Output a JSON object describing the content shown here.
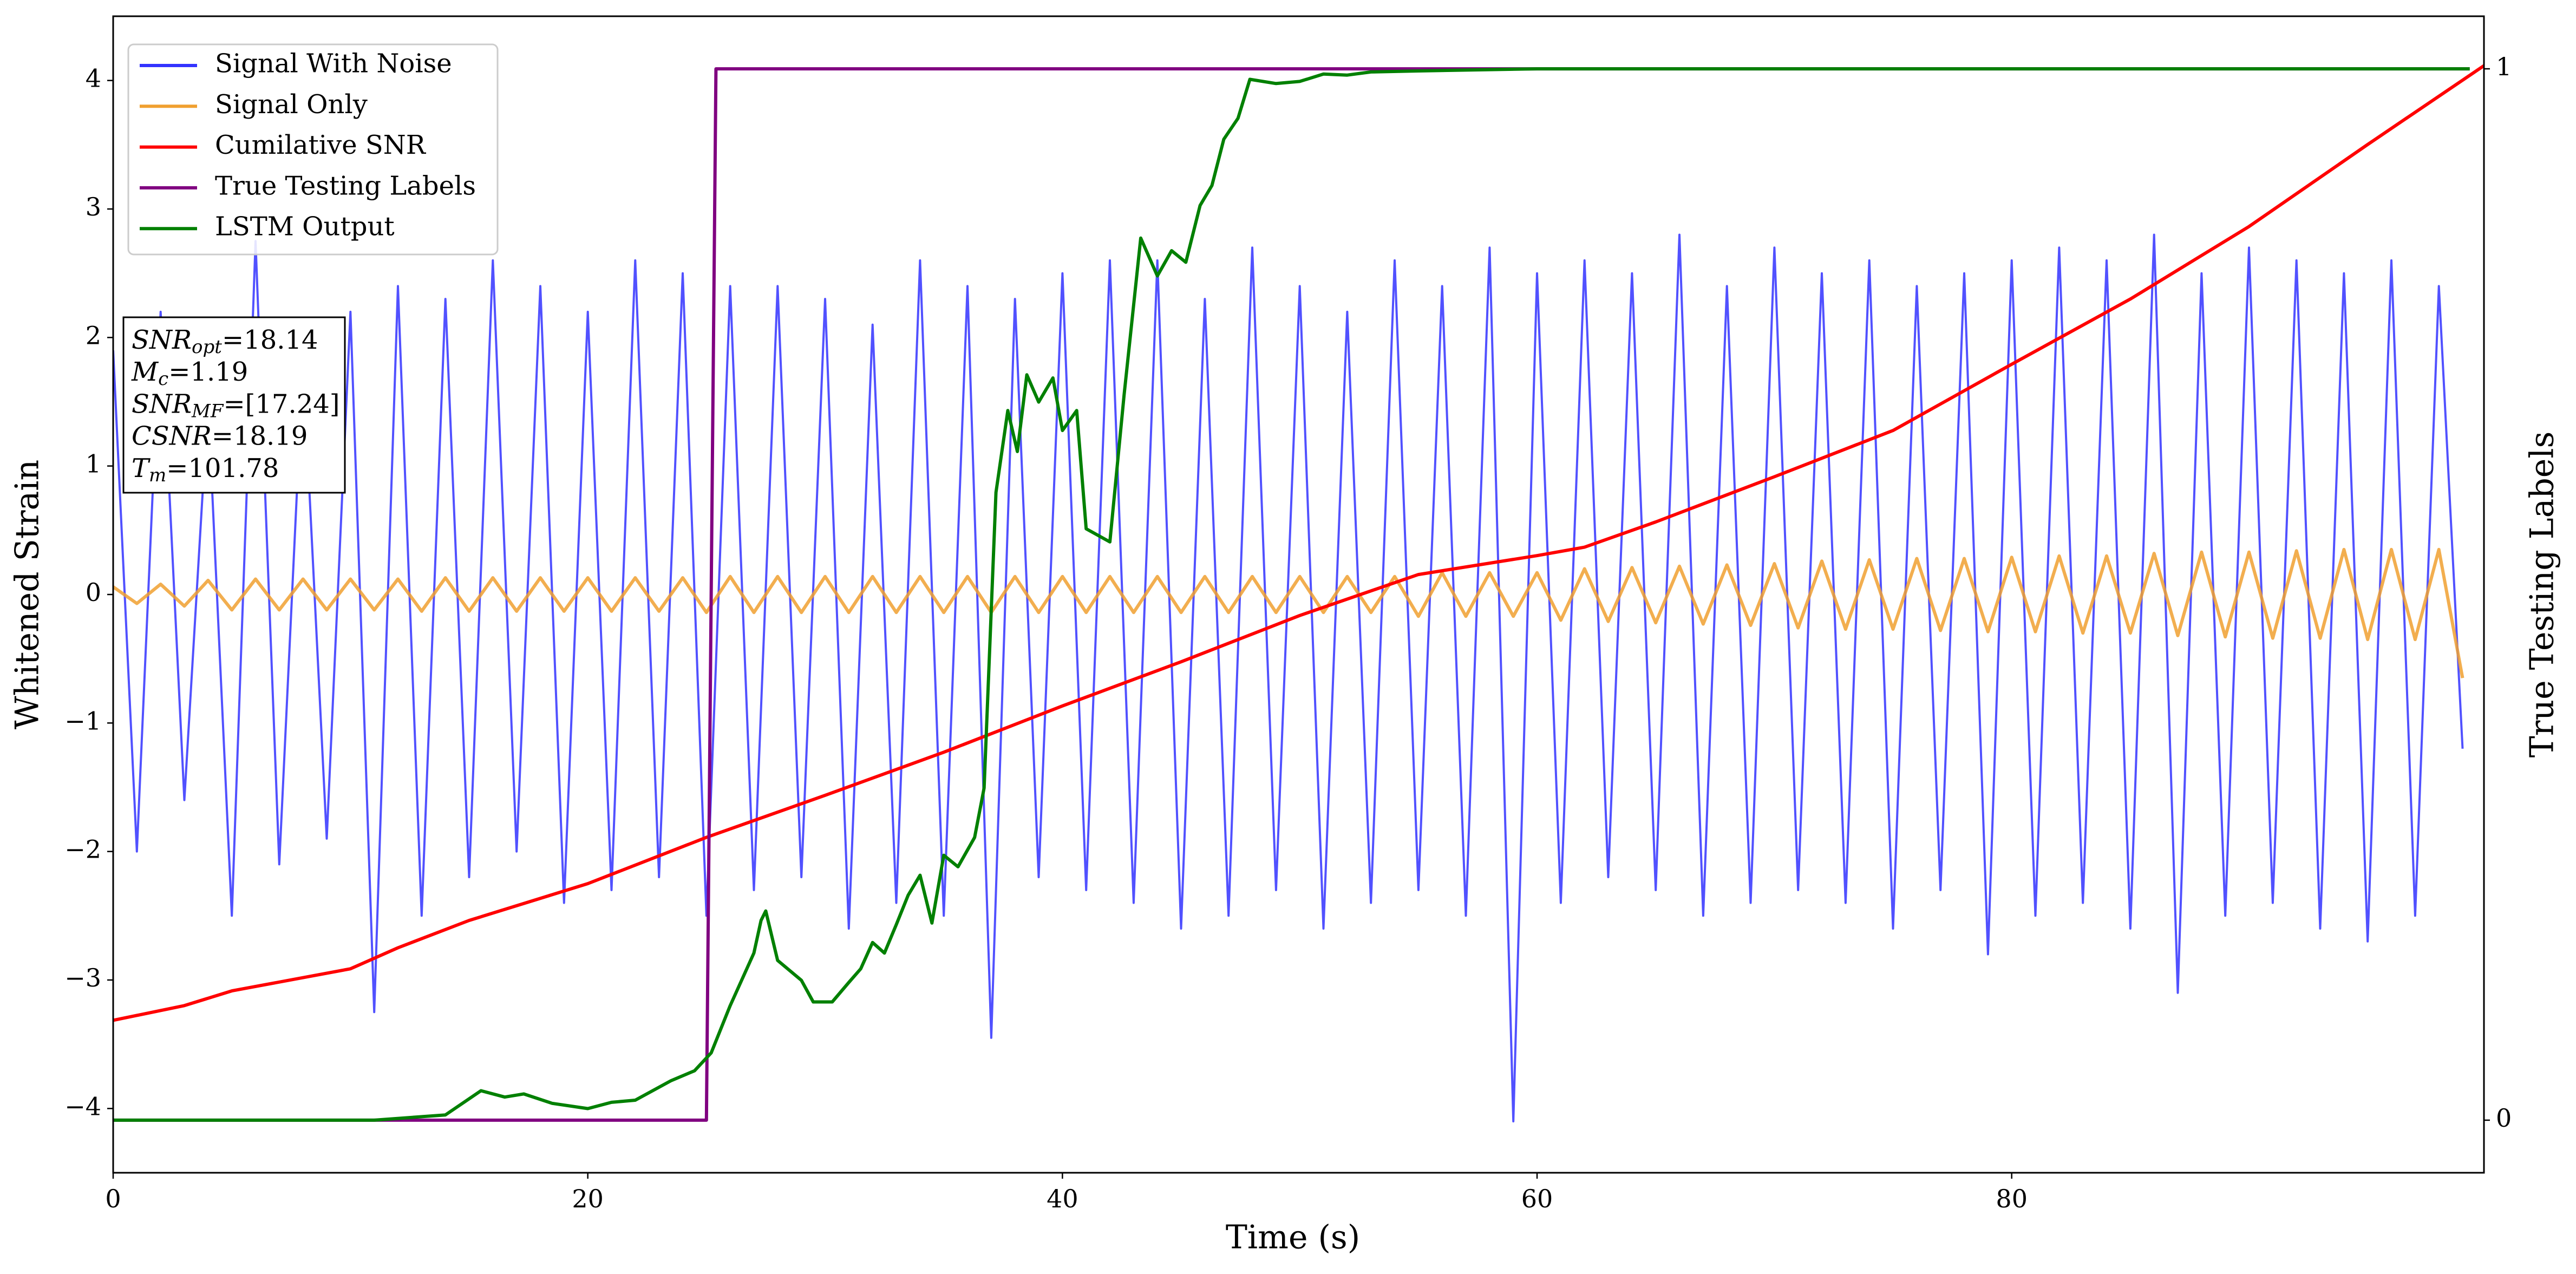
{
  "chart_data": {
    "type": "line",
    "xlabel": "Time (s)",
    "ylabel": "Whitened Strain",
    "y2label": "True Testing Labels",
    "xlim": [
      0,
      99.9
    ],
    "ylim": [
      -4.5,
      4.5
    ],
    "y2lim": [
      -0.05,
      1.05
    ],
    "xticks": [
      0,
      20,
      40,
      60,
      80
    ],
    "yticks": [
      {
        "value": -4,
        "label": "−4"
      },
      {
        "value": -3,
        "label": "−3"
      },
      {
        "value": -2,
        "label": "−2"
      },
      {
        "value": -1,
        "label": "−1"
      },
      0,
      1,
      2,
      3,
      4
    ],
    "y2ticks": [
      0,
      1
    ],
    "legend": "upper left",
    "series": [
      {
        "name": "Signal With Noise",
        "color": "#3333ff",
        "x": [
          0,
          1,
          2,
          3,
          4,
          5,
          6,
          7,
          8,
          9,
          10,
          11,
          12,
          13,
          14,
          15,
          16,
          17,
          18,
          19,
          20,
          21,
          22,
          23,
          24,
          25,
          26,
          27,
          28,
          29,
          30,
          31,
          32,
          33,
          34,
          35,
          36,
          37,
          38,
          39,
          40,
          41,
          42,
          43,
          44,
          45,
          46,
          47,
          48,
          49,
          50,
          51,
          52,
          53,
          54,
          55,
          56,
          57,
          58,
          59,
          60,
          61,
          62,
          63,
          64,
          65,
          66,
          67,
          68,
          69,
          70,
          71,
          72,
          73,
          74,
          75,
          76,
          77,
          78,
          79,
          80,
          81,
          82,
          83,
          84,
          85,
          86,
          87,
          88,
          89,
          90,
          91,
          92,
          93,
          94,
          95,
          96,
          97,
          98,
          99
        ],
        "values": [
          1.9,
          -2.0,
          2.2,
          -1.6,
          1.5,
          -2.5,
          2.75,
          -2.1,
          1.8,
          -1.9,
          2.2,
          -3.25,
          2.4,
          -2.5,
          2.3,
          -2.2,
          2.6,
          -2.0,
          2.4,
          -2.4,
          2.2,
          -2.3,
          2.6,
          -2.2,
          2.5,
          -2.5,
          2.4,
          -2.3,
          2.4,
          -2.2,
          2.3,
          -2.6,
          2.1,
          -2.4,
          2.6,
          -2.5,
          2.4,
          -3.45,
          2.3,
          -2.2,
          2.5,
          -2.3,
          2.6,
          -2.4,
          2.6,
          -2.6,
          2.3,
          -2.5,
          2.7,
          -2.3,
          2.4,
          -2.6,
          2.2,
          -2.4,
          2.6,
          -2.3,
          2.4,
          -2.5,
          2.7,
          -4.1,
          2.5,
          -2.4,
          2.6,
          -2.2,
          2.5,
          -2.3,
          2.8,
          -2.5,
          2.4,
          -2.4,
          2.7,
          -2.3,
          2.5,
          -2.4,
          2.6,
          -2.6,
          2.4,
          -2.3,
          2.5,
          -2.8,
          2.6,
          -2.5,
          2.7,
          -2.4,
          2.6,
          -2.6,
          2.8,
          -3.1,
          2.5,
          -2.5,
          2.7,
          -2.4,
          2.6,
          -2.6,
          2.5,
          -2.7,
          2.6,
          -2.5,
          2.4,
          -1.2
        ]
      },
      {
        "name": "Signal Only",
        "color": "#f0a030",
        "x": [
          0,
          1,
          2,
          3,
          4,
          5,
          6,
          7,
          8,
          9,
          10,
          11,
          12,
          13,
          14,
          15,
          16,
          17,
          18,
          19,
          20,
          21,
          22,
          23,
          24,
          25,
          26,
          27,
          28,
          29,
          30,
          31,
          32,
          33,
          34,
          35,
          36,
          37,
          38,
          39,
          40,
          41,
          42,
          43,
          44,
          45,
          46,
          47,
          48,
          49,
          50,
          51,
          52,
          53,
          54,
          55,
          56,
          57,
          58,
          59,
          60,
          61,
          62,
          63,
          64,
          65,
          66,
          67,
          68,
          69,
          70,
          71,
          72,
          73,
          74,
          75,
          76,
          77,
          78,
          79,
          80,
          81,
          82,
          83,
          84,
          85,
          86,
          87,
          88,
          89,
          90,
          91,
          92,
          93,
          94,
          95,
          96,
          97,
          98,
          99
        ],
        "values": [
          0.06,
          -0.07,
          0.08,
          -0.09,
          0.11,
          -0.12,
          0.12,
          -0.12,
          0.12,
          -0.12,
          0.12,
          -0.12,
          0.12,
          -0.13,
          0.13,
          -0.13,
          0.13,
          -0.13,
          0.13,
          -0.13,
          0.13,
          -0.13,
          0.13,
          -0.13,
          0.13,
          -0.14,
          0.14,
          -0.14,
          0.14,
          -0.14,
          0.14,
          -0.14,
          0.14,
          -0.14,
          0.14,
          -0.14,
          0.14,
          -0.14,
          0.14,
          -0.14,
          0.14,
          -0.14,
          0.14,
          -0.14,
          0.14,
          -0.14,
          0.14,
          -0.14,
          0.14,
          -0.14,
          0.14,
          -0.14,
          0.14,
          -0.14,
          0.14,
          -0.17,
          0.17,
          -0.17,
          0.17,
          -0.17,
          0.17,
          -0.2,
          0.2,
          -0.21,
          0.21,
          -0.22,
          0.22,
          -0.23,
          0.23,
          -0.24,
          0.24,
          -0.26,
          0.26,
          -0.27,
          0.27,
          -0.27,
          0.28,
          -0.28,
          0.28,
          -0.29,
          0.29,
          -0.29,
          0.3,
          -0.3,
          0.3,
          -0.3,
          0.32,
          -0.32,
          0.33,
          -0.33,
          0.33,
          -0.34,
          0.34,
          -0.34,
          0.35,
          -0.35,
          0.35,
          -0.35,
          0.35,
          -0.65
        ]
      },
      {
        "name": "Cumilative SNR",
        "color": "red",
        "axis": "y2",
        "x": [
          0,
          3,
          5,
          10,
          12,
          15,
          20,
          25,
          30,
          35,
          40,
          45,
          50,
          55,
          60,
          62,
          65,
          70,
          75,
          80,
          85,
          90,
          95,
          99.9
        ],
        "values": [
          0.095,
          0.109,
          0.123,
          0.144,
          0.164,
          0.19,
          0.225,
          0.269,
          0.309,
          0.35,
          0.394,
          0.436,
          0.48,
          0.519,
          0.537,
          0.545,
          0.569,
          0.612,
          0.656,
          0.719,
          0.781,
          0.85,
          0.928,
          1.003
        ]
      },
      {
        "name": "True Testing Labels",
        "color": "purple",
        "axis": "y2",
        "x": [
          0,
          25,
          25.4,
          99.3
        ],
        "values": [
          0,
          0,
          1,
          1
        ]
      },
      {
        "name": "LSTM Output",
        "color": "green",
        "axis": "y2",
        "x": [
          0,
          11,
          14,
          15.5,
          16.5,
          17.3,
          18.5,
          20,
          21,
          22,
          23.5,
          24.5,
          25.2,
          26,
          27,
          27.3,
          27.5,
          28,
          29,
          29.5,
          30.3,
          31,
          31.5,
          32,
          32.5,
          33,
          33.5,
          34,
          34.5,
          35,
          35.6,
          36.3,
          36.7,
          37.2,
          37.7,
          38.1,
          38.5,
          39,
          39.6,
          40,
          40.6,
          41,
          42,
          42.6,
          43.3,
          44,
          44.6,
          45.2,
          45.8,
          46.3,
          46.8,
          47.4,
          47.9,
          49,
          50,
          51,
          52,
          53,
          55,
          60,
          99.3
        ],
        "values": [
          0,
          0,
          0.005,
          0.028,
          0.022,
          0.025,
          0.016,
          0.011,
          0.017,
          0.019,
          0.0375,
          0.047,
          0.064,
          0.109,
          0.159,
          0.19,
          0.199,
          0.152,
          0.133,
          0.1125,
          0.1125,
          0.131,
          0.144,
          0.169,
          0.159,
          0.186,
          0.214,
          0.233,
          0.1875,
          0.252,
          0.241,
          0.269,
          0.316,
          0.597,
          0.675,
          0.636,
          0.709,
          0.683,
          0.706,
          0.656,
          0.675,
          0.5625,
          0.55,
          0.69,
          0.839,
          0.803,
          0.827,
          0.816,
          0.87,
          0.889,
          0.933,
          0.953,
          0.99,
          0.986,
          0.988,
          0.995,
          0.994,
          0.997,
          0.998,
          1.0,
          1.0
        ]
      }
    ],
    "annotation": [
      {
        "symbol": "SNR",
        "sub": "opt",
        "text": "=18.14"
      },
      {
        "symbol": "M",
        "sub": "c",
        "text": "=1.19"
      },
      {
        "symbol": "SNR",
        "sub": "MF",
        "text": "=[17.24]"
      },
      {
        "symbol": "CSNR",
        "sub": "",
        "text": "=18.19"
      },
      {
        "symbol": "T",
        "sub": "m",
        "text": "=101.78"
      }
    ]
  }
}
